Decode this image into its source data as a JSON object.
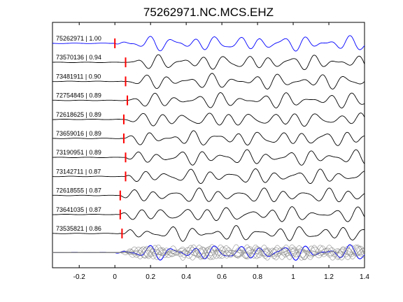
{
  "chart_data": {
    "type": "line",
    "title": "75262971.NC.MCS.EHZ",
    "xlabel": "",
    "ylabel": "",
    "xlim": [
      -0.35,
      1.4
    ],
    "x_ticks": [
      -0.2,
      0,
      0.2,
      0.4,
      0.6,
      0.8,
      1,
      1.2,
      1.4
    ],
    "x_tick_labels": [
      "-0.2",
      "0",
      "0.2",
      "0.4",
      "0.6",
      "0.8",
      "1",
      "1.2",
      "1.4"
    ],
    "grid": false,
    "colors": {
      "master_trace": "#0000ff",
      "trace": "#000000",
      "stack_trace": "#808080",
      "pick": "#ff0000",
      "axes": "#000000"
    },
    "traces": [
      {
        "event_id": "75262971",
        "correlation": "1.00",
        "pick_time": 0.0,
        "color": "blue"
      },
      {
        "event_id": "73570136",
        "correlation": "0.94",
        "pick_time": 0.06,
        "color": "black"
      },
      {
        "event_id": "73481911",
        "correlation": "0.90",
        "pick_time": 0.06,
        "color": "black"
      },
      {
        "event_id": "72754845",
        "correlation": "0.89",
        "pick_time": 0.07,
        "color": "black"
      },
      {
        "event_id": "72618625",
        "correlation": "0.89",
        "pick_time": 0.05,
        "color": "black"
      },
      {
        "event_id": "73659016",
        "correlation": "0.89",
        "pick_time": 0.05,
        "color": "black"
      },
      {
        "event_id": "73190951",
        "correlation": "0.89",
        "pick_time": 0.06,
        "color": "black"
      },
      {
        "event_id": "73142711",
        "correlation": "0.87",
        "pick_time": 0.06,
        "color": "black"
      },
      {
        "event_id": "72618555",
        "correlation": "0.87",
        "pick_time": 0.03,
        "color": "black"
      },
      {
        "event_id": "73641035",
        "correlation": "0.87",
        "pick_time": 0.03,
        "color": "black"
      },
      {
        "event_id": "73535821",
        "correlation": "0.86",
        "pick_time": 0.04,
        "color": "black"
      }
    ],
    "overlay": {
      "description_visible": false,
      "trace_count": 11
    }
  }
}
